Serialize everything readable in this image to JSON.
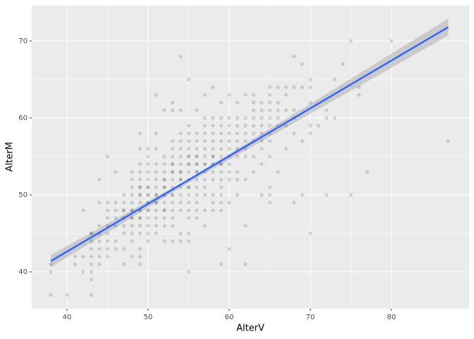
{
  "chart_data": {
    "type": "scatter",
    "x_label": "AlterV",
    "y_label": "AlterM",
    "xlim": [
      35.65,
      89.57
    ],
    "ylim": [
      35.23,
      74.59
    ],
    "xticks": [
      40,
      50,
      60,
      70,
      80
    ],
    "yticks": [
      40,
      50,
      60,
      70
    ],
    "grid": true,
    "point_color": "#000000",
    "points": [
      {
        "x": 38,
        "y": [
          37,
          40,
          41
        ]
      },
      {
        "x": 40,
        "y": [
          37
        ]
      },
      {
        "x": 41,
        "y": [
          41,
          42
        ]
      },
      {
        "x": 42,
        "y": [
          40,
          42,
          48
        ]
      },
      {
        "x": 43,
        "y": [
          37,
          39,
          40,
          41,
          42,
          43,
          44,
          45,
          45
        ]
      },
      {
        "x": 44,
        "y": [
          41,
          42,
          43,
          44,
          45,
          46,
          49,
          52
        ]
      },
      {
        "x": 45,
        "y": [
          42,
          43,
          44,
          45,
          46,
          47,
          48,
          49,
          55
        ]
      },
      {
        "x": 46,
        "y": [
          43,
          44,
          46,
          47,
          48,
          49,
          53
        ]
      },
      {
        "x": 47,
        "y": [
          41,
          43,
          45,
          46,
          47,
          47,
          48,
          48,
          49,
          50
        ]
      },
      {
        "x": 48,
        "y": [
          42,
          44,
          45,
          46,
          47,
          47,
          48,
          48,
          49,
          50,
          51,
          52,
          53
        ]
      },
      {
        "x": 49,
        "y": [
          41,
          42,
          43,
          45,
          46,
          47,
          47,
          48,
          48,
          49,
          50,
          50,
          51,
          51,
          52,
          53,
          54,
          56,
          58
        ]
      },
      {
        "x": 50,
        "y": [
          44,
          45,
          46,
          47,
          48,
          48,
          49,
          49,
          50,
          50,
          51,
          51,
          52,
          53,
          54,
          55,
          56
        ]
      },
      {
        "x": 51,
        "y": [
          45,
          46,
          47,
          48,
          49,
          49,
          50,
          50,
          51,
          52,
          53,
          54,
          56,
          58,
          63
        ]
      },
      {
        "x": 52,
        "y": [
          44,
          46,
          47,
          48,
          48,
          49,
          50,
          50,
          51,
          51,
          52,
          52,
          53,
          54,
          55,
          61
        ]
      },
      {
        "x": 53,
        "y": [
          44,
          46,
          47,
          48,
          49,
          50,
          50,
          51,
          52,
          53,
          53,
          54,
          54,
          55,
          56,
          57,
          61,
          62
        ]
      },
      {
        "x": 54,
        "y": [
          44,
          45,
          48,
          49,
          50,
          51,
          52,
          52,
          53,
          53,
          54,
          55,
          56,
          57,
          58,
          61,
          68
        ]
      },
      {
        "x": 55,
        "y": [
          40,
          44,
          45,
          47,
          48,
          49,
          50,
          51,
          51,
          52,
          53,
          54,
          54,
          55,
          55,
          56,
          57,
          58,
          59,
          65
        ]
      },
      {
        "x": 56,
        "y": [
          47,
          48,
          49,
          50,
          51,
          52,
          53,
          53,
          54,
          54,
          55,
          55,
          56,
          57,
          58,
          61
        ]
      },
      {
        "x": 57,
        "y": [
          46,
          48,
          50,
          51,
          52,
          53,
          54,
          54,
          55,
          56,
          57,
          58,
          59,
          60,
          63
        ]
      },
      {
        "x": 58,
        "y": [
          48,
          49,
          50,
          52,
          53,
          54,
          54,
          55,
          55,
          56,
          57,
          58,
          59,
          60,
          64
        ]
      },
      {
        "x": 59,
        "y": [
          41,
          48,
          49,
          50,
          51,
          52,
          53,
          54,
          54,
          55,
          56,
          57,
          58,
          59,
          60,
          62
        ]
      },
      {
        "x": 60,
        "y": [
          43,
          49,
          52,
          53,
          54,
          55,
          56,
          57,
          58,
          59,
          60,
          63
        ]
      },
      {
        "x": 61,
        "y": [
          50,
          52,
          53,
          55,
          56,
          57,
          58,
          59,
          60,
          62
        ]
      },
      {
        "x": 62,
        "y": [
          41,
          46,
          52,
          55,
          56,
          57,
          58,
          59,
          60,
          63
        ]
      },
      {
        "x": 63,
        "y": [
          53,
          55,
          57,
          58,
          59,
          60,
          61,
          62,
          63
        ]
      },
      {
        "x": 64,
        "y": [
          50,
          54,
          56,
          57,
          58,
          59,
          60,
          61,
          62
        ]
      },
      {
        "x": 65,
        "y": [
          49,
          50,
          51,
          55,
          57,
          58,
          59,
          60,
          61,
          62,
          63,
          64
        ]
      },
      {
        "x": 66,
        "y": [
          53,
          59,
          60,
          61,
          62,
          64
        ]
      },
      {
        "x": 67,
        "y": [
          56,
          59,
          61,
          63,
          64
        ]
      },
      {
        "x": 68,
        "y": [
          49,
          58,
          60,
          61,
          64,
          68
        ]
      },
      {
        "x": 69,
        "y": [
          50,
          57,
          64,
          67
        ]
      },
      {
        "x": 70,
        "y": [
          45,
          58,
          59,
          62,
          64,
          65
        ]
      },
      {
        "x": 71,
        "y": [
          59
        ]
      },
      {
        "x": 72,
        "y": [
          50,
          60,
          61
        ]
      },
      {
        "x": 73,
        "y": [
          60,
          65
        ]
      },
      {
        "x": 74,
        "y": [
          67
        ]
      },
      {
        "x": 75,
        "y": [
          50,
          70
        ]
      },
      {
        "x": 76,
        "y": [
          63,
          64
        ]
      },
      {
        "x": 77,
        "y": [
          53
        ]
      },
      {
        "x": 80,
        "y": [
          70
        ]
      },
      {
        "x": 87,
        "y": [
          57
        ]
      }
    ],
    "fit": {
      "color": "#3366ff",
      "x": [
        38,
        87
      ],
      "values": [
        41.4,
        71.8
      ]
    },
    "band": {
      "color": "#999999",
      "x": [
        38,
        55,
        87
      ],
      "lower": [
        40.6,
        51.6,
        70.7
      ],
      "upper": [
        42.2,
        52.1,
        72.9
      ]
    }
  }
}
